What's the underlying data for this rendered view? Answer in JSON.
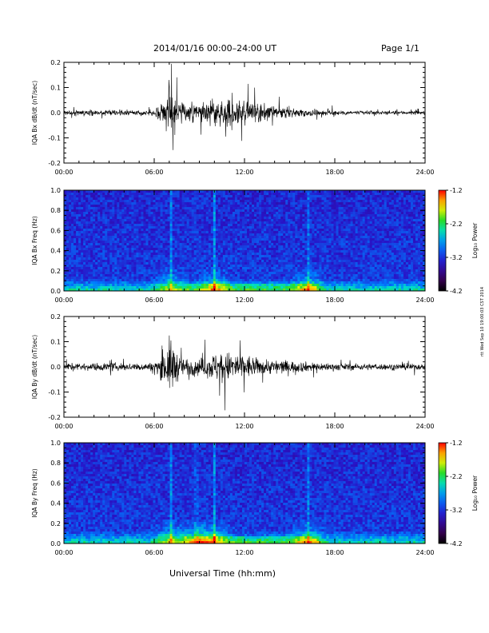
{
  "header": {
    "title": "2014/01/16  00:00–24:00 UT",
    "page": "Page 1/1"
  },
  "footer": {
    "xlabel": "Universal Time (hh:mm)",
    "stamp": "rtt Wed Sep 10 19:00:03 CST 2014"
  },
  "colorbar": {
    "label": "Log₁₀ Power",
    "ticks": [
      "-1.2",
      "-2.2",
      "-3.2",
      "-4.2"
    ],
    "range": [
      -4.2,
      -1.2
    ]
  },
  "chart_data": [
    {
      "type": "line",
      "title": "",
      "ylabel": "IQA Bx dB/dt (nT/sec)",
      "xlabel": "",
      "xlim": [
        "00:00",
        "24:00"
      ],
      "ylim": [
        -0.2,
        0.2
      ],
      "xticks": [
        "00:00",
        "06:00",
        "12:00",
        "18:00",
        "24:00"
      ],
      "yticks": [
        "0.2",
        "0.1",
        "0.0",
        "-0.1",
        "-0.2"
      ],
      "color": "#000000",
      "envelope_hours": [
        0,
        1,
        2,
        3,
        4,
        5,
        6,
        6.8,
        7.0,
        7.2,
        7.6,
        8,
        9,
        10,
        10.5,
        11,
        11.5,
        12,
        12.5,
        13,
        14,
        15,
        16,
        18,
        20,
        22,
        24
      ],
      "envelope_amplitude": [
        0.02,
        0.02,
        0.025,
        0.025,
        0.02,
        0.02,
        0.025,
        0.12,
        0.22,
        0.2,
        0.08,
        0.06,
        0.07,
        0.12,
        0.12,
        0.13,
        0.12,
        0.1,
        0.08,
        0.07,
        0.05,
        0.04,
        0.03,
        0.02,
        0.015,
        0.015,
        0.015
      ]
    },
    {
      "type": "heatmap",
      "title": "",
      "ylabel": "IQA Bx Freq (Hz)",
      "xlabel": "",
      "xlim": [
        "00:00",
        "24:00"
      ],
      "ylim": [
        0.0,
        1.0
      ],
      "xticks": [
        "00:00",
        "06:00",
        "12:00",
        "18:00",
        "24:00"
      ],
      "yticks": [
        "1.0",
        "0.8",
        "0.6",
        "0.4",
        "0.2",
        "0.0"
      ],
      "zlabel": "Log₁₀ Power",
      "zlim": [
        -4.2,
        -1.2
      ],
      "events_hours": [
        7.1,
        10.0,
        16.2
      ]
    },
    {
      "type": "line",
      "title": "",
      "ylabel": "IQA By dB/dt (nT/sec)",
      "xlabel": "",
      "xlim": [
        "00:00",
        "24:00"
      ],
      "ylim": [
        -0.2,
        0.2
      ],
      "xticks": [
        "00:00",
        "06:00",
        "12:00",
        "18:00",
        "24:00"
      ],
      "yticks": [
        "0.2",
        "0.1",
        "0.0",
        "-0.1",
        "-0.2"
      ],
      "color": "#000000",
      "envelope_hours": [
        0,
        1,
        2,
        3,
        4,
        5,
        6,
        6.8,
        7.0,
        7.2,
        7.6,
        8,
        9,
        9.5,
        10,
        10.5,
        11,
        11.5,
        12,
        12.5,
        13,
        14,
        15,
        16,
        18,
        20,
        22,
        24
      ],
      "envelope_amplitude": [
        0.03,
        0.03,
        0.03,
        0.035,
        0.03,
        0.03,
        0.035,
        0.14,
        0.23,
        0.21,
        0.1,
        0.07,
        0.07,
        0.08,
        0.12,
        0.12,
        0.12,
        0.12,
        0.1,
        0.09,
        0.06,
        0.06,
        0.05,
        0.04,
        0.03,
        0.025,
        0.025,
        0.025
      ]
    },
    {
      "type": "heatmap",
      "title": "",
      "ylabel": "IQA By Freq (Hz)",
      "xlabel": "Universal Time (hh:mm)",
      "xlim": [
        "00:00",
        "24:00"
      ],
      "ylim": [
        0.0,
        1.0
      ],
      "xticks": [
        "00:00",
        "06:00",
        "12:00",
        "18:00",
        "24:00"
      ],
      "yticks": [
        "1.0",
        "0.8",
        "0.6",
        "0.4",
        "0.2",
        "0.0"
      ],
      "zlabel": "Log₁₀ Power",
      "zlim": [
        -4.2,
        -1.2
      ],
      "events_hours": [
        7.1,
        8.8,
        10.0,
        16.2
      ]
    }
  ]
}
